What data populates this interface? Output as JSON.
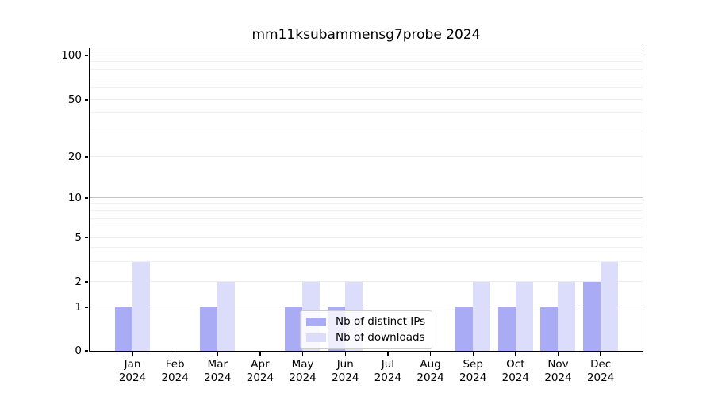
{
  "chart_data": {
    "type": "bar",
    "title": "mm11ksubammensg7probe 2024",
    "x_months": [
      "Jan",
      "Feb",
      "Mar",
      "Apr",
      "May",
      "Jun",
      "Jul",
      "Aug",
      "Sep",
      "Oct",
      "Nov",
      "Dec"
    ],
    "x_year": "2024",
    "categories": [
      "Jan 2024",
      "Feb 2024",
      "Mar 2024",
      "Apr 2024",
      "May 2024",
      "Jun 2024",
      "Jul 2024",
      "Aug 2024",
      "Sep 2024",
      "Oct 2024",
      "Nov 2024",
      "Dec 2024"
    ],
    "series": [
      {
        "key": "distinct-ips",
        "name": "Nb of distinct IPs",
        "color": "#a9abf5",
        "values": [
          1,
          0,
          1,
          0,
          1,
          1,
          0,
          0,
          1,
          1,
          1,
          2
        ]
      },
      {
        "key": "downloads",
        "name": "Nb of downloads",
        "color": "#dbddfa",
        "values": [
          3,
          0,
          2,
          0,
          2,
          2,
          0,
          0,
          2,
          2,
          2,
          3
        ]
      }
    ],
    "xlabel": "",
    "ylabel": "",
    "yscale": "symlog",
    "ylim": [
      0,
      112
    ],
    "yticks_major": [
      0,
      1,
      2,
      5,
      10,
      20,
      50,
      100
    ],
    "yticks_minor": [
      3,
      4,
      6,
      7,
      8,
      9,
      30,
      40,
      60,
      70,
      80,
      90
    ],
    "decade_ticks": [
      1,
      10,
      100
    ],
    "scale_anchors": [
      [
        0,
        0
      ],
      [
        1,
        0.144
      ],
      [
        2,
        0.2277
      ],
      [
        5,
        0.3743
      ],
      [
        10,
        0.5052
      ],
      [
        20,
        0.6414
      ],
      [
        50,
        0.8298
      ],
      [
        100,
        0.9764
      ]
    ],
    "grid": true,
    "legend": {
      "position": "lower center"
    }
  }
}
